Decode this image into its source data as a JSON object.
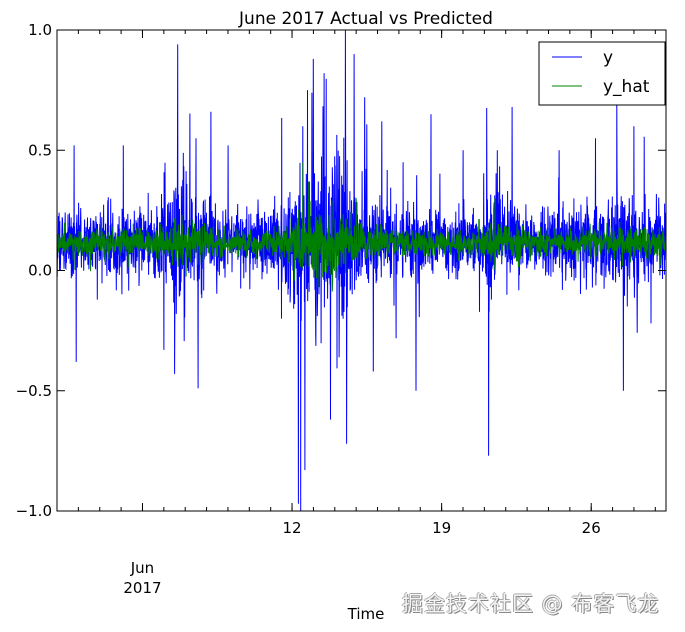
{
  "chart_data": {
    "type": "line",
    "title": "June 2017 Actual vs Predicted",
    "xlabel": "Time",
    "ylabel": "",
    "xlim_days_of_june_2017": [
      1,
      29.5
    ],
    "ylim": [
      -1.0,
      1.0
    ],
    "yticks": [
      {
        "value": 1.0,
        "label": "1.0"
      },
      {
        "value": 0.5,
        "label": "0.5"
      },
      {
        "value": 0.0,
        "label": "0.0"
      },
      {
        "value": -0.5,
        "label": "−0.5"
      },
      {
        "value": -1.0,
        "label": "−1.0"
      }
    ],
    "xticks_major": [
      {
        "day": 5,
        "label": "Jun\n2017",
        "line1": "Jun",
        "line2": "2017"
      },
      {
        "day": 12,
        "label": "12"
      },
      {
        "day": 19,
        "label": "19"
      },
      {
        "day": 26,
        "label": "26"
      }
    ],
    "xticks_minor": "daily",
    "grid": false,
    "legend": {
      "placement": "top-right",
      "entries": [
        "y",
        "y_hat"
      ]
    },
    "series": [
      {
        "name": "y",
        "color": "#0000ff",
        "description_mean": 0.12,
        "typical_range": [
          -0.1,
          0.3
        ],
        "notable_points": [
          [
            1.8,
            0.52
          ],
          [
            1.9,
            -0.38
          ],
          [
            4.1,
            0.52
          ],
          [
            6.0,
            -0.33
          ],
          [
            6.5,
            -0.43
          ],
          [
            6.65,
            0.94
          ],
          [
            7.5,
            0.55
          ],
          [
            7.6,
            -0.49
          ],
          [
            8.2,
            0.66
          ],
          [
            9.0,
            0.52
          ],
          [
            11.5,
            -0.2
          ],
          [
            12.3,
            -0.97
          ],
          [
            12.4,
            -1.0
          ],
          [
            12.5,
            0.6
          ],
          [
            12.6,
            -0.83
          ],
          [
            13.0,
            0.88
          ],
          [
            13.5,
            0.82
          ],
          [
            13.8,
            -0.62
          ],
          [
            14.5,
            1.0
          ],
          [
            14.55,
            -0.72
          ],
          [
            14.9,
            0.9
          ],
          [
            15.4,
            0.72
          ],
          [
            15.8,
            -0.42
          ],
          [
            16.2,
            0.62
          ],
          [
            17.2,
            0.45
          ],
          [
            17.8,
            -0.5
          ],
          [
            18.5,
            0.65
          ],
          [
            20.0,
            0.5
          ],
          [
            21.2,
            -0.77
          ],
          [
            21.6,
            0.5
          ],
          [
            22.3,
            0.68
          ],
          [
            24.5,
            0.5
          ],
          [
            26.2,
            0.55
          ],
          [
            27.2,
            0.7
          ],
          [
            27.5,
            -0.5
          ],
          [
            28.0,
            0.6
          ],
          [
            28.8,
            -0.22
          ]
        ]
      },
      {
        "name": "y_hat",
        "color": "#008000",
        "description_mean": 0.115,
        "typical_range": [
          0.03,
          0.2
        ],
        "notable_points": [
          [
            12.5,
            0.45
          ],
          [
            12.2,
            0.05
          ],
          [
            15.0,
            0.3
          ],
          [
            21.5,
            0.3
          ]
        ]
      }
    ]
  },
  "watermark": "掘金技术社区 @ 布客飞龙"
}
